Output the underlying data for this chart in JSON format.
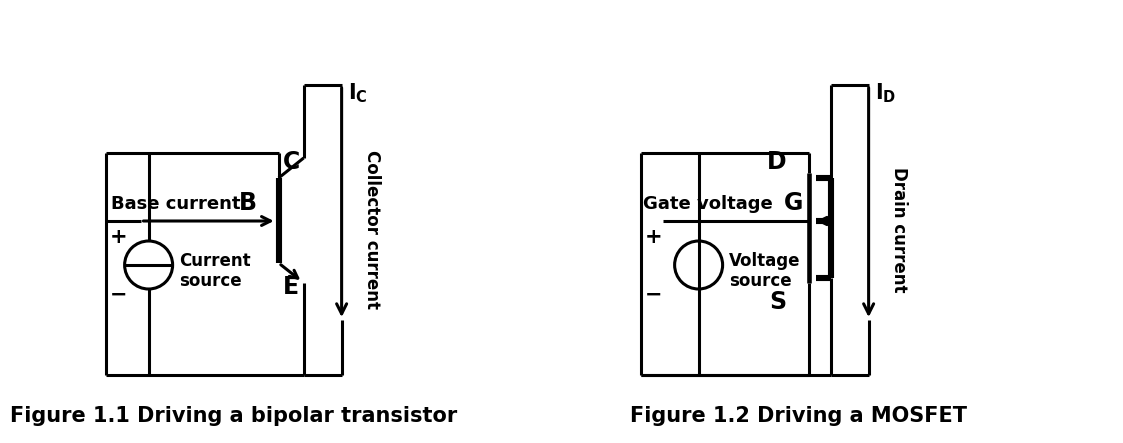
{
  "fig_width": 10.8,
  "fig_height": 4.23,
  "bg_color": "#ffffff",
  "lc": "#000000",
  "lw": 2.2,
  "fig1_caption": "Figure 1.1 Driving a bipolar transistor",
  "fig2_caption": "Figure 1.2 Driving a MOSFET"
}
